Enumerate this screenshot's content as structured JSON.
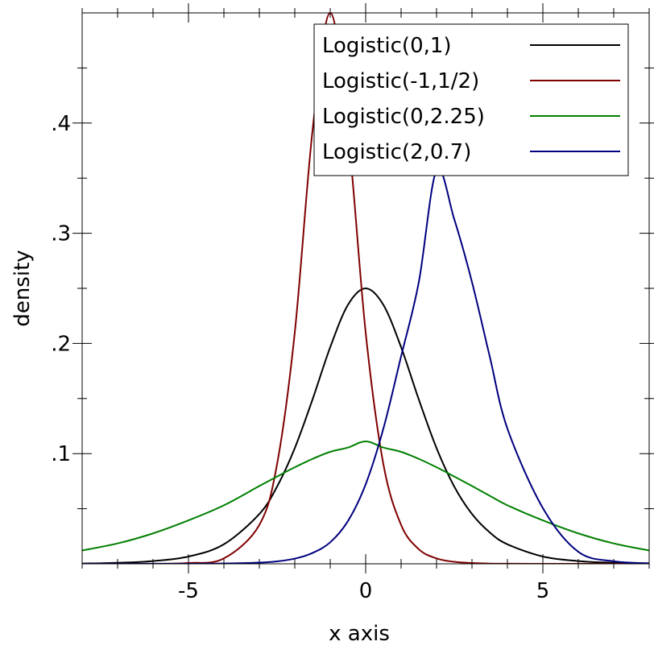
{
  "chart_data": {
    "type": "line",
    "title": "",
    "xlabel": "x axis",
    "ylabel": "density",
    "xlim": [
      -8,
      8
    ],
    "ylim": [
      0,
      0.5
    ],
    "grid": false,
    "legend_position": "top-right",
    "x_ticks": [
      {
        "value": -5,
        "label": "-5"
      },
      {
        "value": 0,
        "label": "0"
      },
      {
        "value": 5,
        "label": "5"
      }
    ],
    "y_ticks": [
      {
        "value": 0.1,
        "label": ".1"
      },
      {
        "value": 0.2,
        "label": ".2"
      },
      {
        "value": 0.3,
        "label": ".3"
      },
      {
        "value": 0.4,
        "label": ".4"
      }
    ],
    "x": [
      -8,
      -7,
      -6,
      -5,
      -4,
      -3,
      -2.5,
      -2,
      -1.5,
      -1,
      -0.5,
      0,
      0.5,
      1,
      1.5,
      2,
      2.5,
      3,
      3.5,
      4,
      5,
      6,
      7,
      8
    ],
    "series": [
      {
        "name": "Logistic(0,1)",
        "color": "#000000",
        "values": [
          0.0003,
          0.0009,
          0.0025,
          0.0066,
          0.0177,
          0.0452,
          0.0701,
          0.105,
          0.1491,
          0.1966,
          0.235,
          0.25,
          0.235,
          0.1966,
          0.1491,
          0.105,
          0.0701,
          0.0452,
          0.0285,
          0.0177,
          0.0066,
          0.0025,
          0.0009,
          0.0003
        ]
      },
      {
        "name": "Logistic(-1,1/2)",
        "color": "#7f0000",
        "values": [
          0.0,
          0.0,
          0.0001,
          0.0007,
          0.0049,
          0.0353,
          0.0904,
          0.21,
          0.393,
          0.5,
          0.393,
          0.21,
          0.0904,
          0.0353,
          0.0132,
          0.0049,
          0.0018,
          0.0007,
          0.0002,
          0.0001,
          0.0,
          0.0,
          0.0,
          0.0
        ]
      },
      {
        "name": "Logistic(0,2.25)",
        "color": "#007f00",
        "values": [
          0.0121,
          0.0185,
          0.0276,
          0.0394,
          0.0531,
          0.0706,
          0.0792,
          0.0876,
          0.0952,
          0.1016,
          0.1055,
          0.1111,
          0.1055,
          0.1016,
          0.0952,
          0.0876,
          0.0792,
          0.0706,
          0.0618,
          0.0531,
          0.0394,
          0.0276,
          0.0185,
          0.0121
        ]
      },
      {
        "name": "Logistic(2,0.7)",
        "color": "#00007f",
        "values": [
          0.0,
          0.0,
          0.0,
          0.0001,
          0.0003,
          0.0011,
          0.0022,
          0.0047,
          0.0098,
          0.0195,
          0.0388,
          0.0721,
          0.1227,
          0.1883,
          0.2557,
          0.3571,
          0.3127,
          0.2557,
          0.1883,
          0.1227,
          0.0506,
          0.0109,
          0.0023,
          0.0005
        ]
      }
    ]
  }
}
